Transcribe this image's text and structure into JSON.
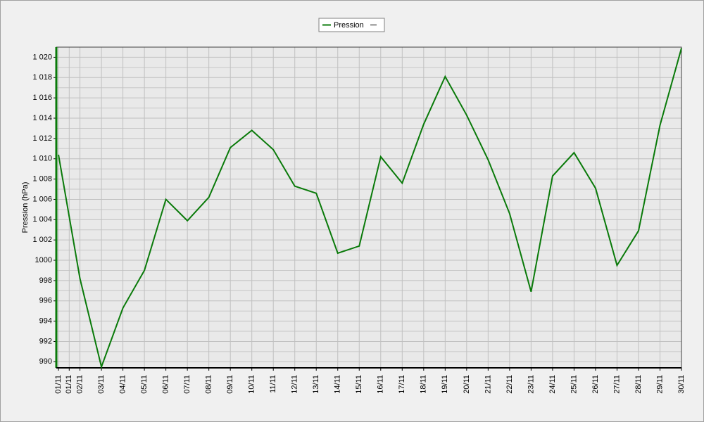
{
  "chart_data": {
    "type": "line",
    "y_label": "Pression (hPa)",
    "x": [
      1,
      2,
      3,
      4,
      5,
      6,
      7,
      8,
      9,
      10,
      11,
      12,
      13,
      14,
      15,
      16,
      17,
      18,
      19,
      20,
      21,
      22,
      23,
      24,
      25,
      26,
      27,
      28,
      29,
      30
    ],
    "series": [
      {
        "name": "Pression",
        "color": "#0a7a0a",
        "values": [
          1010.4,
          998.2,
          989.5,
          995.3,
          999.0,
          1006.0,
          1003.9,
          1006.2,
          1011.1,
          1012.8,
          1010.9,
          1007.3,
          1006.6,
          1000.7,
          1001.4,
          1010.2,
          1007.6,
          1013.4,
          1018.1,
          1014.3,
          1009.9,
          1004.6,
          996.9,
          1008.3,
          1010.6,
          1007.1,
          999.5,
          1002.9,
          1013.3,
          1020.9
        ]
      }
    ],
    "xlim": [
      0.9,
      30
    ],
    "xticks": [
      {
        "value": 1,
        "label": "01/11"
      },
      {
        "value": 1.5,
        "label": "01/11"
      },
      {
        "value": 2,
        "label": "02/11"
      },
      {
        "value": 3,
        "label": "03/11"
      },
      {
        "value": 4,
        "label": "04/11"
      },
      {
        "value": 5,
        "label": "05/11"
      },
      {
        "value": 6,
        "label": "06/11"
      },
      {
        "value": 7,
        "label": "07/11"
      },
      {
        "value": 8,
        "label": "08/11"
      },
      {
        "value": 9,
        "label": "09/11"
      },
      {
        "value": 10,
        "label": "10/11"
      },
      {
        "value": 11,
        "label": "11/11"
      },
      {
        "value": 12,
        "label": "12/11"
      },
      {
        "value": 13,
        "label": "13/11"
      },
      {
        "value": 14,
        "label": "14/11"
      },
      {
        "value": 15,
        "label": "15/11"
      },
      {
        "value": 16,
        "label": "16/11"
      },
      {
        "value": 17,
        "label": "17/11"
      },
      {
        "value": 18,
        "label": "18/11"
      },
      {
        "value": 19,
        "label": "19/11"
      },
      {
        "value": 20,
        "label": "20/11"
      },
      {
        "value": 21,
        "label": "21/11"
      },
      {
        "value": 22,
        "label": "22/11"
      },
      {
        "value": 23,
        "label": "23/11"
      },
      {
        "value": 24,
        "label": "24/11"
      },
      {
        "value": 25,
        "label": "25/11"
      },
      {
        "value": 26,
        "label": "26/11"
      },
      {
        "value": 27,
        "label": "27/11"
      },
      {
        "value": 28,
        "label": "28/11"
      },
      {
        "value": 29,
        "label": "29/11"
      },
      {
        "value": 30,
        "label": "30/11"
      }
    ],
    "ylim": [
      989.4,
      1021
    ],
    "yticks": [
      990,
      992,
      994,
      996,
      998,
      1000,
      {
        "value": 1002,
        "label": "1 002"
      },
      {
        "value": 1004,
        "label": "1 004"
      },
      {
        "value": 1006,
        "label": "1 006"
      },
      {
        "value": 1008,
        "label": "1 008"
      },
      {
        "value": 1010,
        "label": "1 010"
      },
      {
        "value": 1012,
        "label": "1 012"
      },
      {
        "value": 1014,
        "label": "1 014"
      },
      {
        "value": 1016,
        "label": "1 016"
      },
      {
        "value": 1018,
        "label": "1 018"
      },
      {
        "value": 1020,
        "label": "1 020"
      }
    ],
    "grid": true,
    "legend": "top"
  }
}
